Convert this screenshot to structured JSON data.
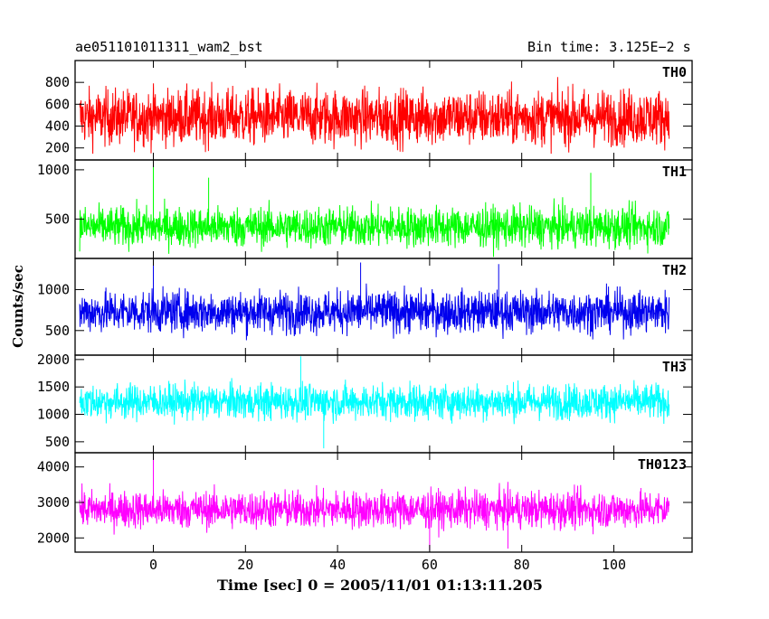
{
  "header": {
    "left_title": "ae051101011311_wam2_bst",
    "right_title": "Bin time: 3.125E−2 s"
  },
  "chart_data": {
    "type": "line",
    "xlabel": "Time [sec] 0 = 2005/11/01 01:13:11.205",
    "ylabel": "Counts/sec",
    "xlim": [
      -17,
      117
    ],
    "x_ticks": [
      0,
      20,
      40,
      60,
      80,
      100
    ],
    "x_tick_labels": [
      "0",
      "20",
      "40",
      "60",
      "80",
      "100"
    ],
    "data_x_range": [
      -16,
      112
    ],
    "bin_time_s": 0.03125,
    "panels": [
      {
        "name": "TH0",
        "color": "#ff0000",
        "ylim": [
          90,
          1000
        ],
        "yticks": [
          200,
          400,
          600,
          800
        ],
        "mean": 480,
        "low_envelope": 150,
        "high_envelope": 900,
        "spikes": []
      },
      {
        "name": "TH1",
        "color": "#00ff00",
        "ylim": [
          100,
          1100
        ],
        "yticks": [
          500,
          1000
        ],
        "mean": 420,
        "low_envelope": 180,
        "high_envelope": 780,
        "spikes": [
          {
            "x": 0,
            "y": 1050
          },
          {
            "x": 12,
            "y": 920
          },
          {
            "x": 95,
            "y": 970
          }
        ]
      },
      {
        "name": "TH2",
        "color": "#0000ee",
        "ylim": [
          200,
          1380
        ],
        "yticks": [
          500,
          1000
        ],
        "mean": 730,
        "low_envelope": 370,
        "high_envelope": 1120,
        "spikes": [
          {
            "x": 0,
            "y": 1370
          },
          {
            "x": 45,
            "y": 1330
          },
          {
            "x": 75,
            "y": 1310
          }
        ]
      },
      {
        "name": "TH3",
        "color": "#00ffff",
        "ylim": [
          300,
          2080
        ],
        "yticks": [
          500,
          1000,
          1500,
          2000
        ],
        "mean": 1230,
        "low_envelope": 850,
        "high_envelope": 1800,
        "spikes": [
          {
            "x": 37,
            "y": 380
          },
          {
            "x": 32,
            "y": 2060
          }
        ]
      },
      {
        "name": "TH0123",
        "color": "#ff00ff",
        "ylim": [
          1600,
          4400
        ],
        "yticks": [
          2000,
          3000,
          4000
        ],
        "mean": 2800,
        "low_envelope": 2050,
        "high_envelope": 3600,
        "spikes": [
          {
            "x": 0,
            "y": 4300
          },
          {
            "x": 60,
            "y": 1650
          },
          {
            "x": 77,
            "y": 1700
          }
        ]
      }
    ]
  }
}
